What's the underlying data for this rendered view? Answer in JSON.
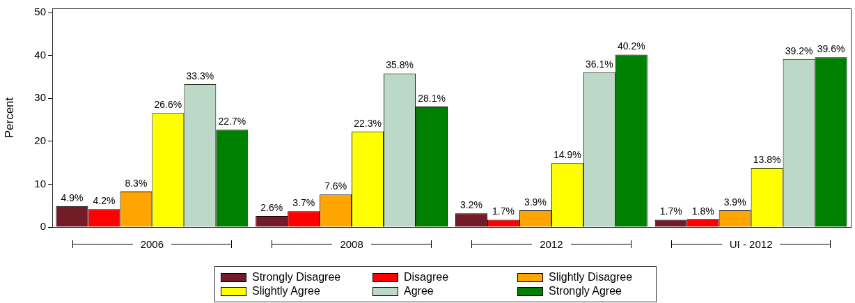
{
  "chart_data": {
    "type": "bar",
    "ylabel": "Percent",
    "categories": [
      "2006",
      "2008",
      "2012",
      "UI - 2012"
    ],
    "series": [
      {
        "name": "Strongly Disagree",
        "color": "#731b27",
        "values": [
          4.9,
          2.6,
          3.2,
          1.7
        ],
        "value_labels": [
          "4.9%",
          "2.6%",
          "3.2%",
          "1.7%"
        ]
      },
      {
        "name": "Disagree",
        "color": "#ff0000",
        "values": [
          4.2,
          3.7,
          1.7,
          1.8
        ],
        "value_labels": [
          "4.2%",
          "3.7%",
          "1.7%",
          "1.8%"
        ]
      },
      {
        "name": "Slightly Disagree",
        "color": "#ffa500",
        "values": [
          8.3,
          7.6,
          3.9,
          3.9
        ],
        "value_labels": [
          "8.3%",
          "7.6%",
          "3.9%",
          "3.9%"
        ]
      },
      {
        "name": "Slightly Agree",
        "color": "#ffff00",
        "values": [
          26.6,
          22.3,
          14.9,
          13.8
        ],
        "value_labels": [
          "26.6%",
          "22.3%",
          "14.9%",
          "13.8%"
        ]
      },
      {
        "name": "Agree",
        "color": "#bcd8c6",
        "values": [
          33.3,
          35.8,
          36.1,
          39.2
        ],
        "value_labels": [
          "33.3%",
          "35.8%",
          "36.1%",
          "39.2%"
        ]
      },
      {
        "name": "Strongly Agree",
        "color": "#008000",
        "values": [
          22.7,
          28.1,
          40.2,
          39.6
        ],
        "value_labels": [
          "22.7%",
          "28.1%",
          "40.2%",
          "39.6%"
        ]
      }
    ],
    "ylim": [
      0,
      51
    ],
    "yticks": [
      0,
      10,
      20,
      30,
      40,
      50
    ],
    "grid": false,
    "legend": "bottom"
  }
}
